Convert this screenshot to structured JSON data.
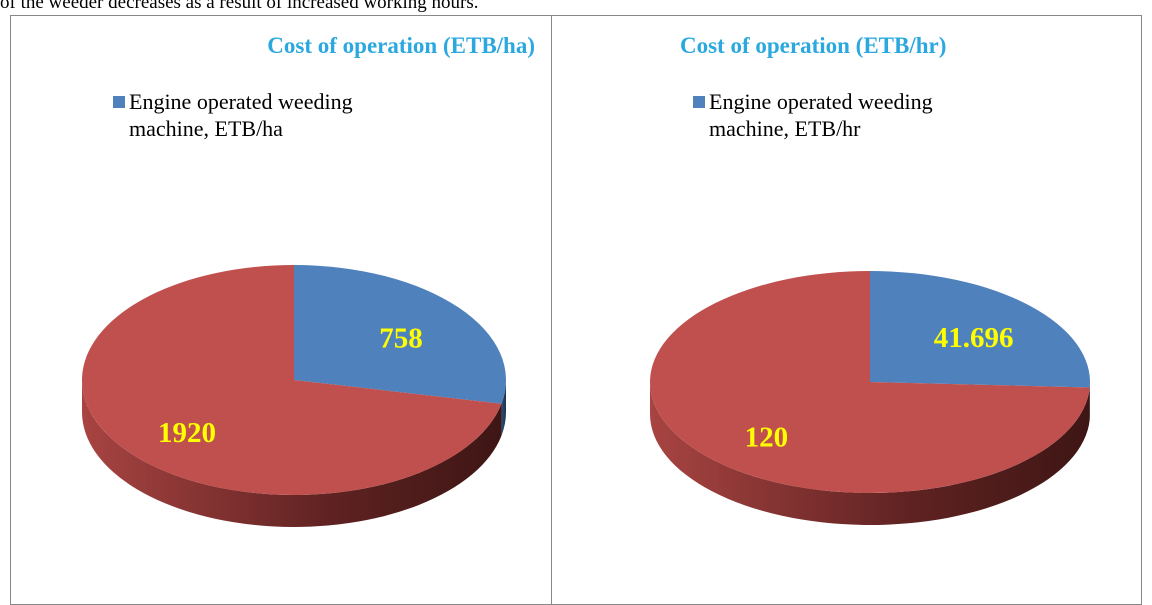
{
  "text": "of the weeder decreases as a result of increased working hours.",
  "chart_data": [
    {
      "type": "pie",
      "title": "Cost of operation (ETB/ha)",
      "categories": [
        "Engine operated weeding machine, ETB/ha",
        null
      ],
      "values": [
        758,
        1920
      ],
      "colors": [
        "#4f81bd",
        "#c0504d"
      ]
    },
    {
      "type": "pie",
      "title": "Cost of operation (ETB/hr)",
      "categories": [
        "Engine operated weeding machine, ETB/hr",
        null
      ],
      "values": [
        41.696,
        120
      ],
      "colors": [
        "#4f81bd",
        "#c0504d"
      ]
    }
  ]
}
